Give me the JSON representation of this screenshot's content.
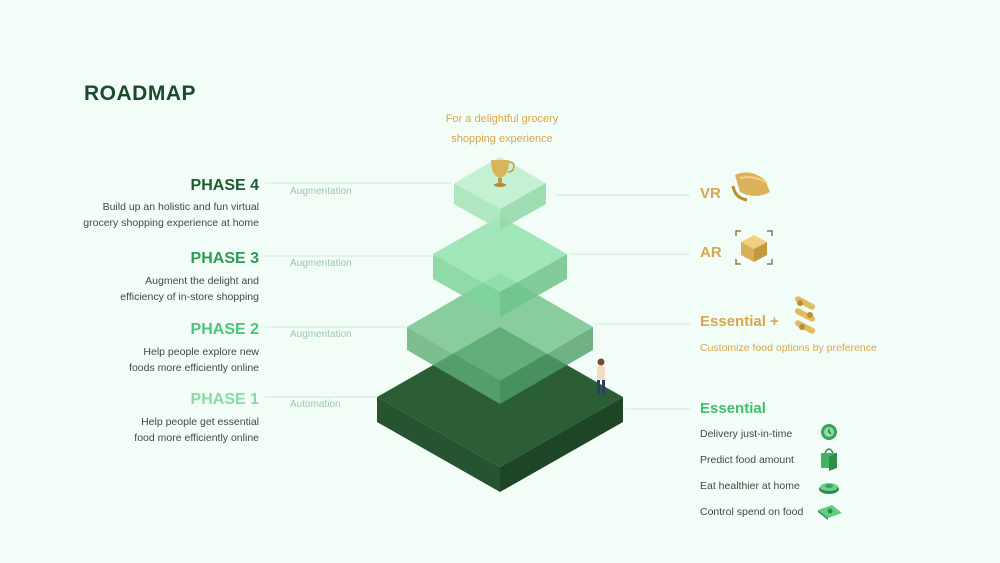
{
  "title": "ROADMAP",
  "goal": {
    "line1": "For a delightful grocery",
    "line2": "shopping experience",
    "icon": "trophy-icon"
  },
  "phases": [
    {
      "title": "PHASE 4",
      "desc1": "Build up an holistic and fun virtual",
      "desc2": "grocery shopping experience at home",
      "step": "Augmentation",
      "color": "#1d5a30"
    },
    {
      "title": "PHASE 3",
      "desc1": "Augment the delight and",
      "desc2": "efficiency of in-store shopping",
      "step": "Augmentation",
      "color": "#2e9a52"
    },
    {
      "title": "PHASE 2",
      "desc1": "Help people explore new",
      "desc2": "foods more efficiently online",
      "step": "Augmentation",
      "color": "#4cc47a"
    },
    {
      "title": "PHASE 1",
      "desc1": "Help people get essential",
      "desc2": "food more efficiently online",
      "step": "Automation",
      "color": "#8bd9a5"
    }
  ],
  "levels": {
    "vr": {
      "label": "VR",
      "icon": "vr-headset-icon"
    },
    "ar": {
      "label": "AR",
      "icon": "ar-cube-icon"
    },
    "essential_plus": {
      "label": "Essential +",
      "subtitle": "Customize food options by preference",
      "icon": "options-icon"
    },
    "essential": {
      "label": "Essential",
      "features": [
        {
          "label": "Delivery just-in-time",
          "icon": "clock-icon"
        },
        {
          "label": "Predict food amount",
          "icon": "grocery-bag-icon"
        },
        {
          "label": "Eat healthier at home",
          "icon": "healthy-plate-icon"
        },
        {
          "label": "Control spend on food",
          "icon": "money-icon"
        }
      ]
    }
  },
  "colors": {
    "accent_gold": "#d8a64b",
    "accent_green": "#3fbf6f",
    "dark_green": "#1d4a2c",
    "background": "#f3fdf8"
  }
}
